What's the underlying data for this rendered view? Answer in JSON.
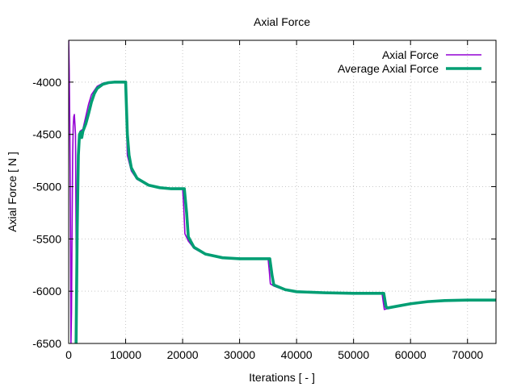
{
  "chart_data": {
    "type": "line",
    "title": "Axial Force",
    "xlabel": "Iterations [ - ]",
    "ylabel": "Axial Force [ N ]",
    "xlim": [
      0,
      75000
    ],
    "ylim": [
      -6500,
      -3600
    ],
    "xticks": [
      0,
      10000,
      20000,
      30000,
      40000,
      50000,
      60000,
      70000
    ],
    "yticks": [
      -6500,
      -6000,
      -5500,
      -5000,
      -4500,
      -4000
    ],
    "grid": true,
    "legend_position": "top-right",
    "series": [
      {
        "name": "Axial Force",
        "color": "#9400d3",
        "line_width": "thin",
        "points": [
          [
            0,
            -3600
          ],
          [
            100,
            -3900
          ],
          [
            200,
            -4400
          ],
          [
            300,
            -5200
          ],
          [
            400,
            -6500
          ],
          [
            500,
            -6200
          ],
          [
            600,
            -5400
          ],
          [
            700,
            -4700
          ],
          [
            800,
            -4420
          ],
          [
            900,
            -4330
          ],
          [
            1000,
            -4310
          ],
          [
            1200,
            -4500
          ],
          [
            1400,
            -6500
          ],
          [
            1600,
            -5200
          ],
          [
            1800,
            -4500
          ],
          [
            2000,
            -4470
          ],
          [
            2500,
            -4450
          ],
          [
            3000,
            -4330
          ],
          [
            3500,
            -4210
          ],
          [
            4000,
            -4120
          ],
          [
            5000,
            -4040
          ],
          [
            6000,
            -4010
          ],
          [
            7000,
            -4000
          ],
          [
            8000,
            -4000
          ],
          [
            9000,
            -4000
          ],
          [
            10000,
            -4000
          ],
          [
            10100,
            -4300
          ],
          [
            10300,
            -4700
          ],
          [
            11000,
            -4850
          ],
          [
            12000,
            -4930
          ],
          [
            14000,
            -4990
          ],
          [
            16000,
            -5010
          ],
          [
            18000,
            -5020
          ],
          [
            20000,
            -5020
          ],
          [
            20200,
            -5200
          ],
          [
            20400,
            -5450
          ],
          [
            21000,
            -5520
          ],
          [
            22000,
            -5590
          ],
          [
            24000,
            -5650
          ],
          [
            27000,
            -5680
          ],
          [
            30000,
            -5690
          ],
          [
            35000,
            -5690
          ],
          [
            35200,
            -5800
          ],
          [
            35400,
            -5930
          ],
          [
            36000,
            -5950
          ],
          [
            38000,
            -5990
          ],
          [
            40000,
            -6005
          ],
          [
            45000,
            -6015
          ],
          [
            50000,
            -6020
          ],
          [
            55000,
            -6020
          ],
          [
            55200,
            -6100
          ],
          [
            55400,
            -6175
          ],
          [
            56000,
            -6165
          ],
          [
            58000,
            -6140
          ],
          [
            60000,
            -6120
          ],
          [
            63000,
            -6100
          ],
          [
            66000,
            -6090
          ],
          [
            70000,
            -6085
          ],
          [
            75000,
            -6085
          ]
        ]
      },
      {
        "name": "Average Axial Force",
        "color": "#009e73",
        "line_width": "thick",
        "points": [
          [
            1300,
            -6500
          ],
          [
            1500,
            -5400
          ],
          [
            1700,
            -4700
          ],
          [
            1900,
            -4500
          ],
          [
            2100,
            -4480
          ],
          [
            2300,
            -4530
          ],
          [
            2500,
            -4470
          ],
          [
            3000,
            -4400
          ],
          [
            3500,
            -4300
          ],
          [
            4000,
            -4190
          ],
          [
            4500,
            -4110
          ],
          [
            5000,
            -4060
          ],
          [
            6000,
            -4020
          ],
          [
            7000,
            -4005
          ],
          [
            8000,
            -4000
          ],
          [
            10000,
            -4000
          ],
          [
            10300,
            -4500
          ],
          [
            10600,
            -4700
          ],
          [
            11000,
            -4820
          ],
          [
            12000,
            -4920
          ],
          [
            14000,
            -4985
          ],
          [
            16000,
            -5010
          ],
          [
            18000,
            -5020
          ],
          [
            20300,
            -5020
          ],
          [
            20700,
            -5250
          ],
          [
            21000,
            -5480
          ],
          [
            22000,
            -5580
          ],
          [
            24000,
            -5645
          ],
          [
            27000,
            -5680
          ],
          [
            30000,
            -5690
          ],
          [
            35300,
            -5690
          ],
          [
            35700,
            -5850
          ],
          [
            36000,
            -5940
          ],
          [
            38000,
            -5985
          ],
          [
            40000,
            -6005
          ],
          [
            45000,
            -6015
          ],
          [
            50000,
            -6020
          ],
          [
            55300,
            -6020
          ],
          [
            55700,
            -6150
          ],
          [
            56000,
            -6160
          ],
          [
            58000,
            -6140
          ],
          [
            60000,
            -6120
          ],
          [
            63000,
            -6100
          ],
          [
            66000,
            -6090
          ],
          [
            70000,
            -6085
          ],
          [
            75000,
            -6085
          ]
        ]
      }
    ]
  }
}
